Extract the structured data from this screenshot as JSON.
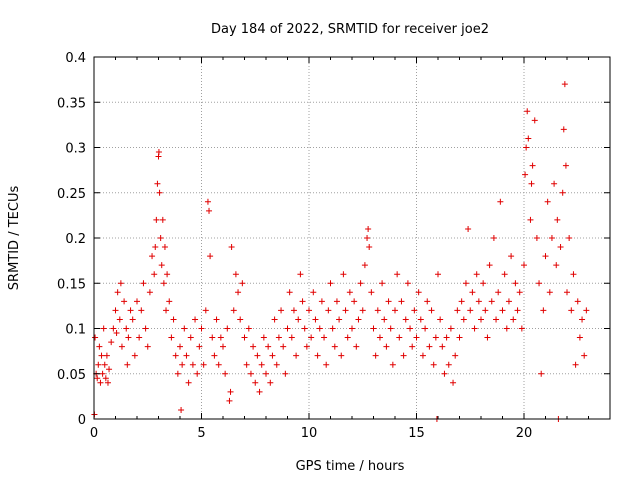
{
  "chart_data": {
    "type": "scatter",
    "title": "Day 184 of 2022, SRMTID for receiver joe2",
    "xlabel": "GPS time / hours",
    "ylabel": "SRMTID / TECUs",
    "xlim": [
      0,
      24
    ],
    "ylim": [
      0,
      0.4
    ],
    "xticks": [
      0,
      5,
      10,
      15,
      20
    ],
    "xtick_labels": [
      "0",
      "5",
      "10",
      "15",
      "20"
    ],
    "yticks": [
      0,
      0.05,
      0.1,
      0.15,
      0.2,
      0.25,
      0.3,
      0.35,
      0.4
    ],
    "ytick_labels": [
      "0",
      "0.05",
      "0.1",
      "0.15",
      "0.2",
      "0.25",
      "0.3",
      "0.35",
      "0.4"
    ],
    "grid": true,
    "marker": "plus",
    "color": "#e00000",
    "series": [
      {
        "name": "SRMTID",
        "points": [
          [
            0.02,
            0.005
          ],
          [
            0.05,
            0.09
          ],
          [
            0.1,
            0.05
          ],
          [
            0.15,
            0.045
          ],
          [
            0.2,
            0.06
          ],
          [
            0.25,
            0.08
          ],
          [
            0.3,
            0.04
          ],
          [
            0.35,
            0.07
          ],
          [
            0.4,
            0.05
          ],
          [
            0.45,
            0.1
          ],
          [
            0.5,
            0.06
          ],
          [
            0.55,
            0.045
          ],
          [
            0.6,
            0.07
          ],
          [
            0.65,
            0.04
          ],
          [
            0.7,
            0.055
          ],
          [
            0.8,
            0.085
          ],
          [
            0.9,
            0.1
          ],
          [
            1.0,
            0.12
          ],
          [
            1.05,
            0.095
          ],
          [
            1.1,
            0.14
          ],
          [
            1.2,
            0.11
          ],
          [
            1.25,
            0.15
          ],
          [
            1.3,
            0.08
          ],
          [
            1.4,
            0.13
          ],
          [
            1.5,
            0.1
          ],
          [
            1.55,
            0.06
          ],
          [
            1.6,
            0.09
          ],
          [
            1.7,
            0.12
          ],
          [
            1.8,
            0.11
          ],
          [
            1.9,
            0.07
          ],
          [
            2.0,
            0.13
          ],
          [
            2.1,
            0.09
          ],
          [
            2.2,
            0.12
          ],
          [
            2.3,
            0.15
          ],
          [
            2.4,
            0.1
          ],
          [
            2.5,
            0.08
          ],
          [
            2.6,
            0.14
          ],
          [
            2.7,
            0.18
          ],
          [
            2.8,
            0.16
          ],
          [
            2.85,
            0.19
          ],
          [
            2.9,
            0.22
          ],
          [
            2.95,
            0.26
          ],
          [
            3.0,
            0.29
          ],
          [
            3.02,
            0.295
          ],
          [
            3.05,
            0.25
          ],
          [
            3.1,
            0.2
          ],
          [
            3.15,
            0.17
          ],
          [
            3.2,
            0.22
          ],
          [
            3.25,
            0.15
          ],
          [
            3.3,
            0.19
          ],
          [
            3.35,
            0.12
          ],
          [
            3.4,
            0.16
          ],
          [
            3.5,
            0.13
          ],
          [
            3.6,
            0.09
          ],
          [
            3.7,
            0.11
          ],
          [
            3.8,
            0.07
          ],
          [
            3.9,
            0.05
          ],
          [
            4.0,
            0.08
          ],
          [
            4.05,
            0.01
          ],
          [
            4.1,
            0.06
          ],
          [
            4.2,
            0.1
          ],
          [
            4.3,
            0.07
          ],
          [
            4.4,
            0.04
          ],
          [
            4.5,
            0.09
          ],
          [
            4.6,
            0.06
          ],
          [
            4.7,
            0.11
          ],
          [
            4.8,
            0.05
          ],
          [
            4.9,
            0.08
          ],
          [
            5.0,
            0.1
          ],
          [
            5.1,
            0.06
          ],
          [
            5.2,
            0.12
          ],
          [
            5.3,
            0.24
          ],
          [
            5.35,
            0.23
          ],
          [
            5.4,
            0.18
          ],
          [
            5.5,
            0.09
          ],
          [
            5.6,
            0.07
          ],
          [
            5.7,
            0.11
          ],
          [
            5.8,
            0.06
          ],
          [
            5.9,
            0.09
          ],
          [
            6.0,
            0.08
          ],
          [
            6.1,
            0.05
          ],
          [
            6.2,
            0.1
          ],
          [
            6.3,
            0.02
          ],
          [
            6.35,
            0.03
          ],
          [
            6.4,
            0.19
          ],
          [
            6.5,
            0.12
          ],
          [
            6.6,
            0.16
          ],
          [
            6.7,
            0.14
          ],
          [
            6.8,
            0.11
          ],
          [
            6.9,
            0.15
          ],
          [
            7.0,
            0.09
          ],
          [
            7.1,
            0.06
          ],
          [
            7.2,
            0.1
          ],
          [
            7.3,
            0.05
          ],
          [
            7.4,
            0.08
          ],
          [
            7.5,
            0.04
          ],
          [
            7.6,
            0.07
          ],
          [
            7.7,
            0.03
          ],
          [
            7.8,
            0.06
          ],
          [
            7.9,
            0.09
          ],
          [
            8.0,
            0.05
          ],
          [
            8.1,
            0.08
          ],
          [
            8.2,
            0.04
          ],
          [
            8.3,
            0.07
          ],
          [
            8.4,
            0.11
          ],
          [
            8.5,
            0.06
          ],
          [
            8.6,
            0.09
          ],
          [
            8.7,
            0.12
          ],
          [
            8.8,
            0.08
          ],
          [
            8.9,
            0.05
          ],
          [
            9.0,
            0.1
          ],
          [
            9.1,
            0.14
          ],
          [
            9.2,
            0.09
          ],
          [
            9.3,
            0.12
          ],
          [
            9.4,
            0.07
          ],
          [
            9.5,
            0.11
          ],
          [
            9.6,
            0.16
          ],
          [
            9.7,
            0.13
          ],
          [
            9.8,
            0.1
          ],
          [
            9.9,
            0.08
          ],
          [
            10.0,
            0.12
          ],
          [
            10.1,
            0.09
          ],
          [
            10.2,
            0.14
          ],
          [
            10.3,
            0.11
          ],
          [
            10.4,
            0.07
          ],
          [
            10.5,
            0.1
          ],
          [
            10.6,
            0.13
          ],
          [
            10.7,
            0.09
          ],
          [
            10.8,
            0.06
          ],
          [
            10.9,
            0.12
          ],
          [
            11.0,
            0.15
          ],
          [
            11.1,
            0.1
          ],
          [
            11.2,
            0.08
          ],
          [
            11.3,
            0.13
          ],
          [
            11.4,
            0.11
          ],
          [
            11.5,
            0.07
          ],
          [
            11.6,
            0.16
          ],
          [
            11.7,
            0.12
          ],
          [
            11.8,
            0.09
          ],
          [
            11.9,
            0.14
          ],
          [
            12.0,
            0.1
          ],
          [
            12.1,
            0.13
          ],
          [
            12.2,
            0.08
          ],
          [
            12.3,
            0.11
          ],
          [
            12.4,
            0.15
          ],
          [
            12.5,
            0.12
          ],
          [
            12.6,
            0.17
          ],
          [
            12.7,
            0.2
          ],
          [
            12.75,
            0.21
          ],
          [
            12.8,
            0.19
          ],
          [
            12.9,
            0.14
          ],
          [
            13.0,
            0.1
          ],
          [
            13.1,
            0.07
          ],
          [
            13.2,
            0.12
          ],
          [
            13.3,
            0.09
          ],
          [
            13.4,
            0.15
          ],
          [
            13.5,
            0.11
          ],
          [
            13.6,
            0.08
          ],
          [
            13.7,
            0.13
          ],
          [
            13.8,
            0.1
          ],
          [
            13.9,
            0.06
          ],
          [
            14.0,
            0.12
          ],
          [
            14.1,
            0.16
          ],
          [
            14.2,
            0.09
          ],
          [
            14.3,
            0.13
          ],
          [
            14.4,
            0.07
          ],
          [
            14.5,
            0.11
          ],
          [
            14.6,
            0.15
          ],
          [
            14.7,
            0.1
          ],
          [
            14.8,
            0.08
          ],
          [
            14.9,
            0.12
          ],
          [
            15.0,
            0.09
          ],
          [
            15.1,
            0.14
          ],
          [
            15.2,
            0.11
          ],
          [
            15.3,
            0.07
          ],
          [
            15.4,
            0.1
          ],
          [
            15.5,
            0.13
          ],
          [
            15.6,
            0.08
          ],
          [
            15.7,
            0.12
          ],
          [
            15.8,
            0.06
          ],
          [
            15.9,
            0.09
          ],
          [
            15.95,
            0.0
          ],
          [
            16.0,
            0.16
          ],
          [
            16.1,
            0.11
          ],
          [
            16.2,
            0.08
          ],
          [
            16.3,
            0.05
          ],
          [
            16.4,
            0.09
          ],
          [
            16.5,
            0.06
          ],
          [
            16.6,
            0.1
          ],
          [
            16.7,
            0.04
          ],
          [
            16.8,
            0.07
          ],
          [
            16.9,
            0.12
          ],
          [
            17.0,
            0.09
          ],
          [
            17.1,
            0.13
          ],
          [
            17.2,
            0.11
          ],
          [
            17.3,
            0.15
          ],
          [
            17.4,
            0.21
          ],
          [
            17.5,
            0.12
          ],
          [
            17.6,
            0.14
          ],
          [
            17.7,
            0.1
          ],
          [
            17.8,
            0.16
          ],
          [
            17.9,
            0.13
          ],
          [
            18.0,
            0.11
          ],
          [
            18.1,
            0.15
          ],
          [
            18.2,
            0.12
          ],
          [
            18.3,
            0.09
          ],
          [
            18.4,
            0.17
          ],
          [
            18.5,
            0.13
          ],
          [
            18.6,
            0.2
          ],
          [
            18.7,
            0.11
          ],
          [
            18.8,
            0.14
          ],
          [
            18.9,
            0.24
          ],
          [
            19.0,
            0.12
          ],
          [
            19.1,
            0.16
          ],
          [
            19.2,
            0.1
          ],
          [
            19.3,
            0.13
          ],
          [
            19.4,
            0.18
          ],
          [
            19.5,
            0.11
          ],
          [
            19.6,
            0.15
          ],
          [
            19.7,
            0.12
          ],
          [
            19.8,
            0.14
          ],
          [
            19.9,
            0.1
          ],
          [
            20.0,
            0.17
          ],
          [
            20.05,
            0.27
          ],
          [
            20.1,
            0.3
          ],
          [
            20.15,
            0.34
          ],
          [
            20.2,
            0.31
          ],
          [
            20.3,
            0.22
          ],
          [
            20.35,
            0.26
          ],
          [
            20.4,
            0.28
          ],
          [
            20.5,
            0.33
          ],
          [
            20.6,
            0.2
          ],
          [
            20.7,
            0.15
          ],
          [
            20.8,
            0.05
          ],
          [
            20.9,
            0.12
          ],
          [
            21.0,
            0.18
          ],
          [
            21.1,
            0.24
          ],
          [
            21.2,
            0.14
          ],
          [
            21.3,
            0.2
          ],
          [
            21.4,
            0.26
          ],
          [
            21.5,
            0.17
          ],
          [
            21.55,
            0.22
          ],
          [
            21.6,
            0.0
          ],
          [
            21.7,
            0.19
          ],
          [
            21.8,
            0.25
          ],
          [
            21.85,
            0.32
          ],
          [
            21.9,
            0.37
          ],
          [
            21.95,
            0.28
          ],
          [
            22.0,
            0.14
          ],
          [
            22.1,
            0.2
          ],
          [
            22.2,
            0.12
          ],
          [
            22.3,
            0.16
          ],
          [
            22.4,
            0.06
          ],
          [
            22.5,
            0.13
          ],
          [
            22.6,
            0.09
          ],
          [
            22.7,
            0.11
          ],
          [
            22.8,
            0.07
          ],
          [
            22.9,
            0.12
          ]
        ]
      }
    ]
  }
}
